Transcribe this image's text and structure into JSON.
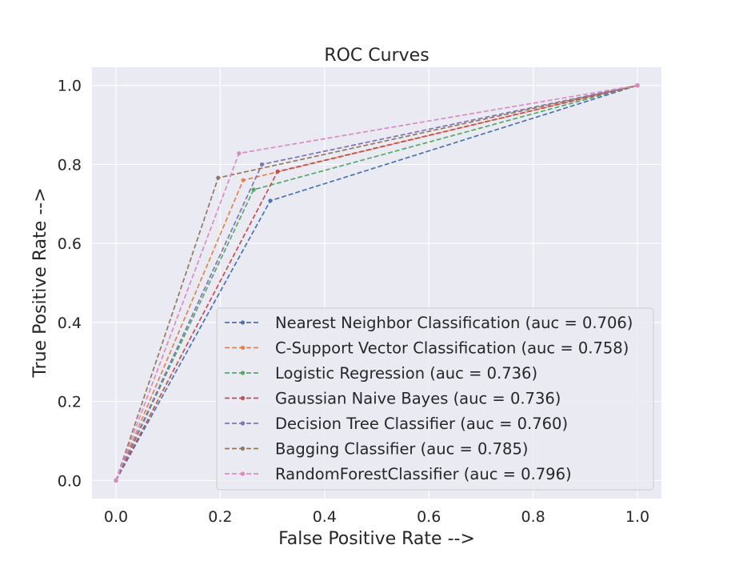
{
  "chart_data": {
    "type": "line",
    "title": "ROC Curves",
    "xlabel": "False Positive Rate -->",
    "ylabel": "True Positive Rate -->",
    "xlim": [
      -0.046,
      1.046
    ],
    "ylim": [
      -0.046,
      1.046
    ],
    "x_ticks": [
      "0.0",
      "0.2",
      "0.4",
      "0.6",
      "0.8",
      "1.0"
    ],
    "y_ticks": [
      "0.0",
      "0.2",
      "0.4",
      "0.6",
      "0.8",
      "1.0"
    ],
    "grid": true,
    "legend_position": "lower-right",
    "line_style": "dashed with dot markers",
    "background": "#EAEAF2",
    "series": [
      {
        "name": "Nearest Neighbor Classification (auc = 0.706)",
        "color": "#4C72B0",
        "points": [
          [
            0,
            0
          ],
          [
            0.296,
            0.708
          ],
          [
            1,
            1
          ]
        ]
      },
      {
        "name": "C-Support Vector Classification (auc = 0.758)",
        "color": "#DD8452",
        "points": [
          [
            0,
            0
          ],
          [
            0.244,
            0.76
          ],
          [
            1,
            1
          ]
        ]
      },
      {
        "name": "Logistic Regression (auc = 0.736)",
        "color": "#55A868",
        "points": [
          [
            0,
            0
          ],
          [
            0.264,
            0.736
          ],
          [
            1,
            1
          ]
        ]
      },
      {
        "name": "Gaussian Naive Bayes (auc = 0.736)",
        "color": "#C44E52",
        "points": [
          [
            0,
            0
          ],
          [
            0.31,
            0.782
          ],
          [
            1,
            1
          ]
        ]
      },
      {
        "name": "Decision Tree Classifier (auc = 0.760)",
        "color": "#8172B3",
        "points": [
          [
            0,
            0
          ],
          [
            0.28,
            0.8
          ],
          [
            1,
            1
          ]
        ]
      },
      {
        "name": "Bagging Classifier (auc = 0.785)",
        "color": "#937860",
        "points": [
          [
            0,
            0
          ],
          [
            0.196,
            0.766
          ],
          [
            1,
            1
          ]
        ]
      },
      {
        "name": "RandomForestClassifier (auc = 0.796)",
        "color": "#DA8BC3",
        "points": [
          [
            0,
            0
          ],
          [
            0.236,
            0.828
          ],
          [
            1,
            1
          ]
        ]
      }
    ]
  }
}
